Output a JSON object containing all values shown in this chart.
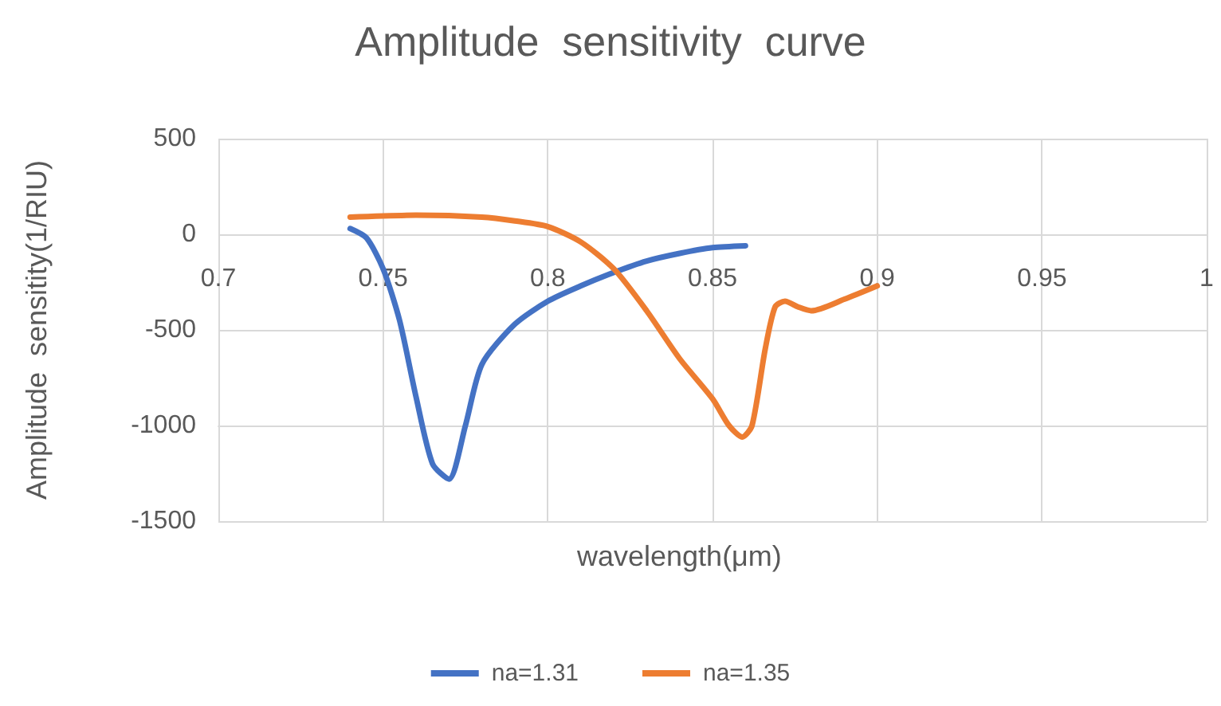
{
  "chart_data": {
    "type": "line",
    "title": "Amplitude  sensitivity  curve",
    "xlabel": "wavelength(μm)",
    "ylabel": "Amplitude  sensitity(1/RIU)",
    "xlim": [
      0.7,
      1
    ],
    "xticks": [
      0.7,
      0.75,
      0.8,
      0.85,
      0.9,
      0.95,
      1
    ],
    "ylim": [
      -1500,
      500
    ],
    "yticks": [
      -1500,
      -1000,
      -500,
      0,
      500
    ],
    "grid": true,
    "legend": "bottom",
    "marker": "none",
    "line_style": "solid",
    "series": [
      {
        "name": "na=1.31",
        "color": "#4472c4",
        "x": [
          0.74,
          0.745,
          0.75,
          0.755,
          0.76,
          0.765,
          0.77,
          0.775,
          0.78,
          0.79,
          0.8,
          0.81,
          0.82,
          0.83,
          0.84,
          0.85,
          0.86
        ],
        "values": [
          30,
          -20,
          -180,
          -450,
          -850,
          -1200,
          -1280,
          -1000,
          -680,
          -470,
          -350,
          -270,
          -200,
          -140,
          -100,
          -70,
          -60
        ]
      },
      {
        "name": "na=1.35",
        "color": "#ed7d31",
        "x": [
          0.74,
          0.76,
          0.78,
          0.79,
          0.8,
          0.81,
          0.82,
          0.83,
          0.84,
          0.85,
          0.855,
          0.859,
          0.862,
          0.866,
          0.869,
          0.872,
          0.876,
          0.88,
          0.89,
          0.9
        ],
        "values": [
          90,
          100,
          90,
          70,
          40,
          -40,
          -180,
          -400,
          -650,
          -860,
          -1000,
          -1060,
          -1000,
          -600,
          -380,
          -350,
          -380,
          -400,
          -340,
          -270
        ]
      }
    ]
  }
}
